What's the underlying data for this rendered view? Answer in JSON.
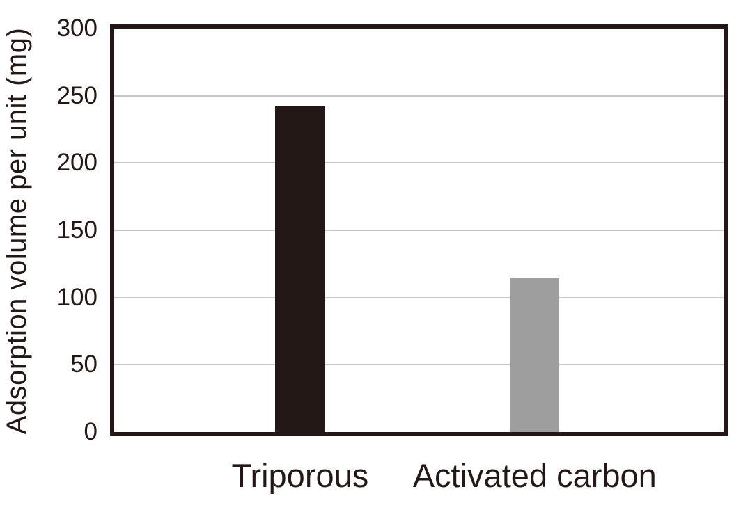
{
  "chart_data": {
    "type": "bar",
    "title": "",
    "xlabel": "",
    "ylabel": "Adsorption volume per unit (mg)",
    "categories": [
      "Triporous",
      "Activated carbon"
    ],
    "values": [
      242,
      115
    ],
    "bar_colors": [
      "#231815",
      "#9e9e9f"
    ],
    "ylim": [
      0,
      300
    ],
    "yticks": [
      0,
      50,
      100,
      150,
      200,
      250,
      300
    ],
    "grid": "horizontal",
    "legend": "none",
    "layout": {
      "bar_center_fractions": [
        0.305,
        0.69
      ],
      "bar_width_fraction": 0.081,
      "frame_color": "#231815",
      "gridline_color": "#c8c8c9",
      "text_color": "#231815",
      "background": "#ffffff"
    }
  }
}
